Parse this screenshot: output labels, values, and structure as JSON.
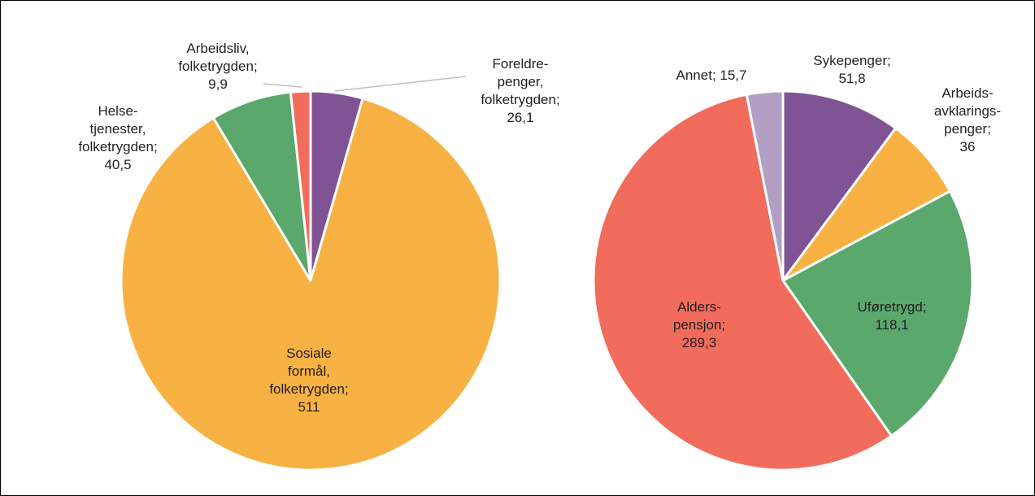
{
  "colors": {
    "purple": "#7f5394",
    "orange": "#f8b243",
    "green": "#5aa86c",
    "red": "#f16c5c",
    "lavender": "#b29fc4"
  },
  "chart_data": [
    {
      "type": "pie",
      "title": "",
      "slices": [
        {
          "label": [
            "Foreldre-",
            "penger,",
            "folketrygden;",
            "26,1"
          ],
          "value": 26.1,
          "color": "#7f5394"
        },
        {
          "label": [
            "Sosiale",
            "formål,",
            "folketrygden;",
            "511"
          ],
          "value": 511,
          "color": "#f8b243"
        },
        {
          "label": [
            "Helse-",
            "tjenester,",
            "folketrygden;",
            "40,5"
          ],
          "value": 40.5,
          "color": "#5aa86c"
        },
        {
          "label": [
            "Arbeidsliv,",
            "folketrygden;",
            "9,9"
          ],
          "value": 9.9,
          "color": "#f16c5c"
        }
      ]
    },
    {
      "type": "pie",
      "title": "",
      "slices": [
        {
          "label": [
            "Sykepenger;",
            "51,8"
          ],
          "value": 51.8,
          "color": "#7f5394"
        },
        {
          "label": [
            "Arbeids-",
            "avklarings-",
            "penger;",
            "36"
          ],
          "value": 36,
          "color": "#f8b243"
        },
        {
          "label": [
            "Uføretrygd;",
            "118,1"
          ],
          "value": 118.1,
          "color": "#5aa86c"
        },
        {
          "label": [
            "Alders-",
            "pensjon;",
            "289,3"
          ],
          "value": 289.3,
          "color": "#f16c5c"
        },
        {
          "label": [
            "Annet; 15,7"
          ],
          "value": 15.7,
          "color": "#b29fc4"
        }
      ]
    }
  ]
}
